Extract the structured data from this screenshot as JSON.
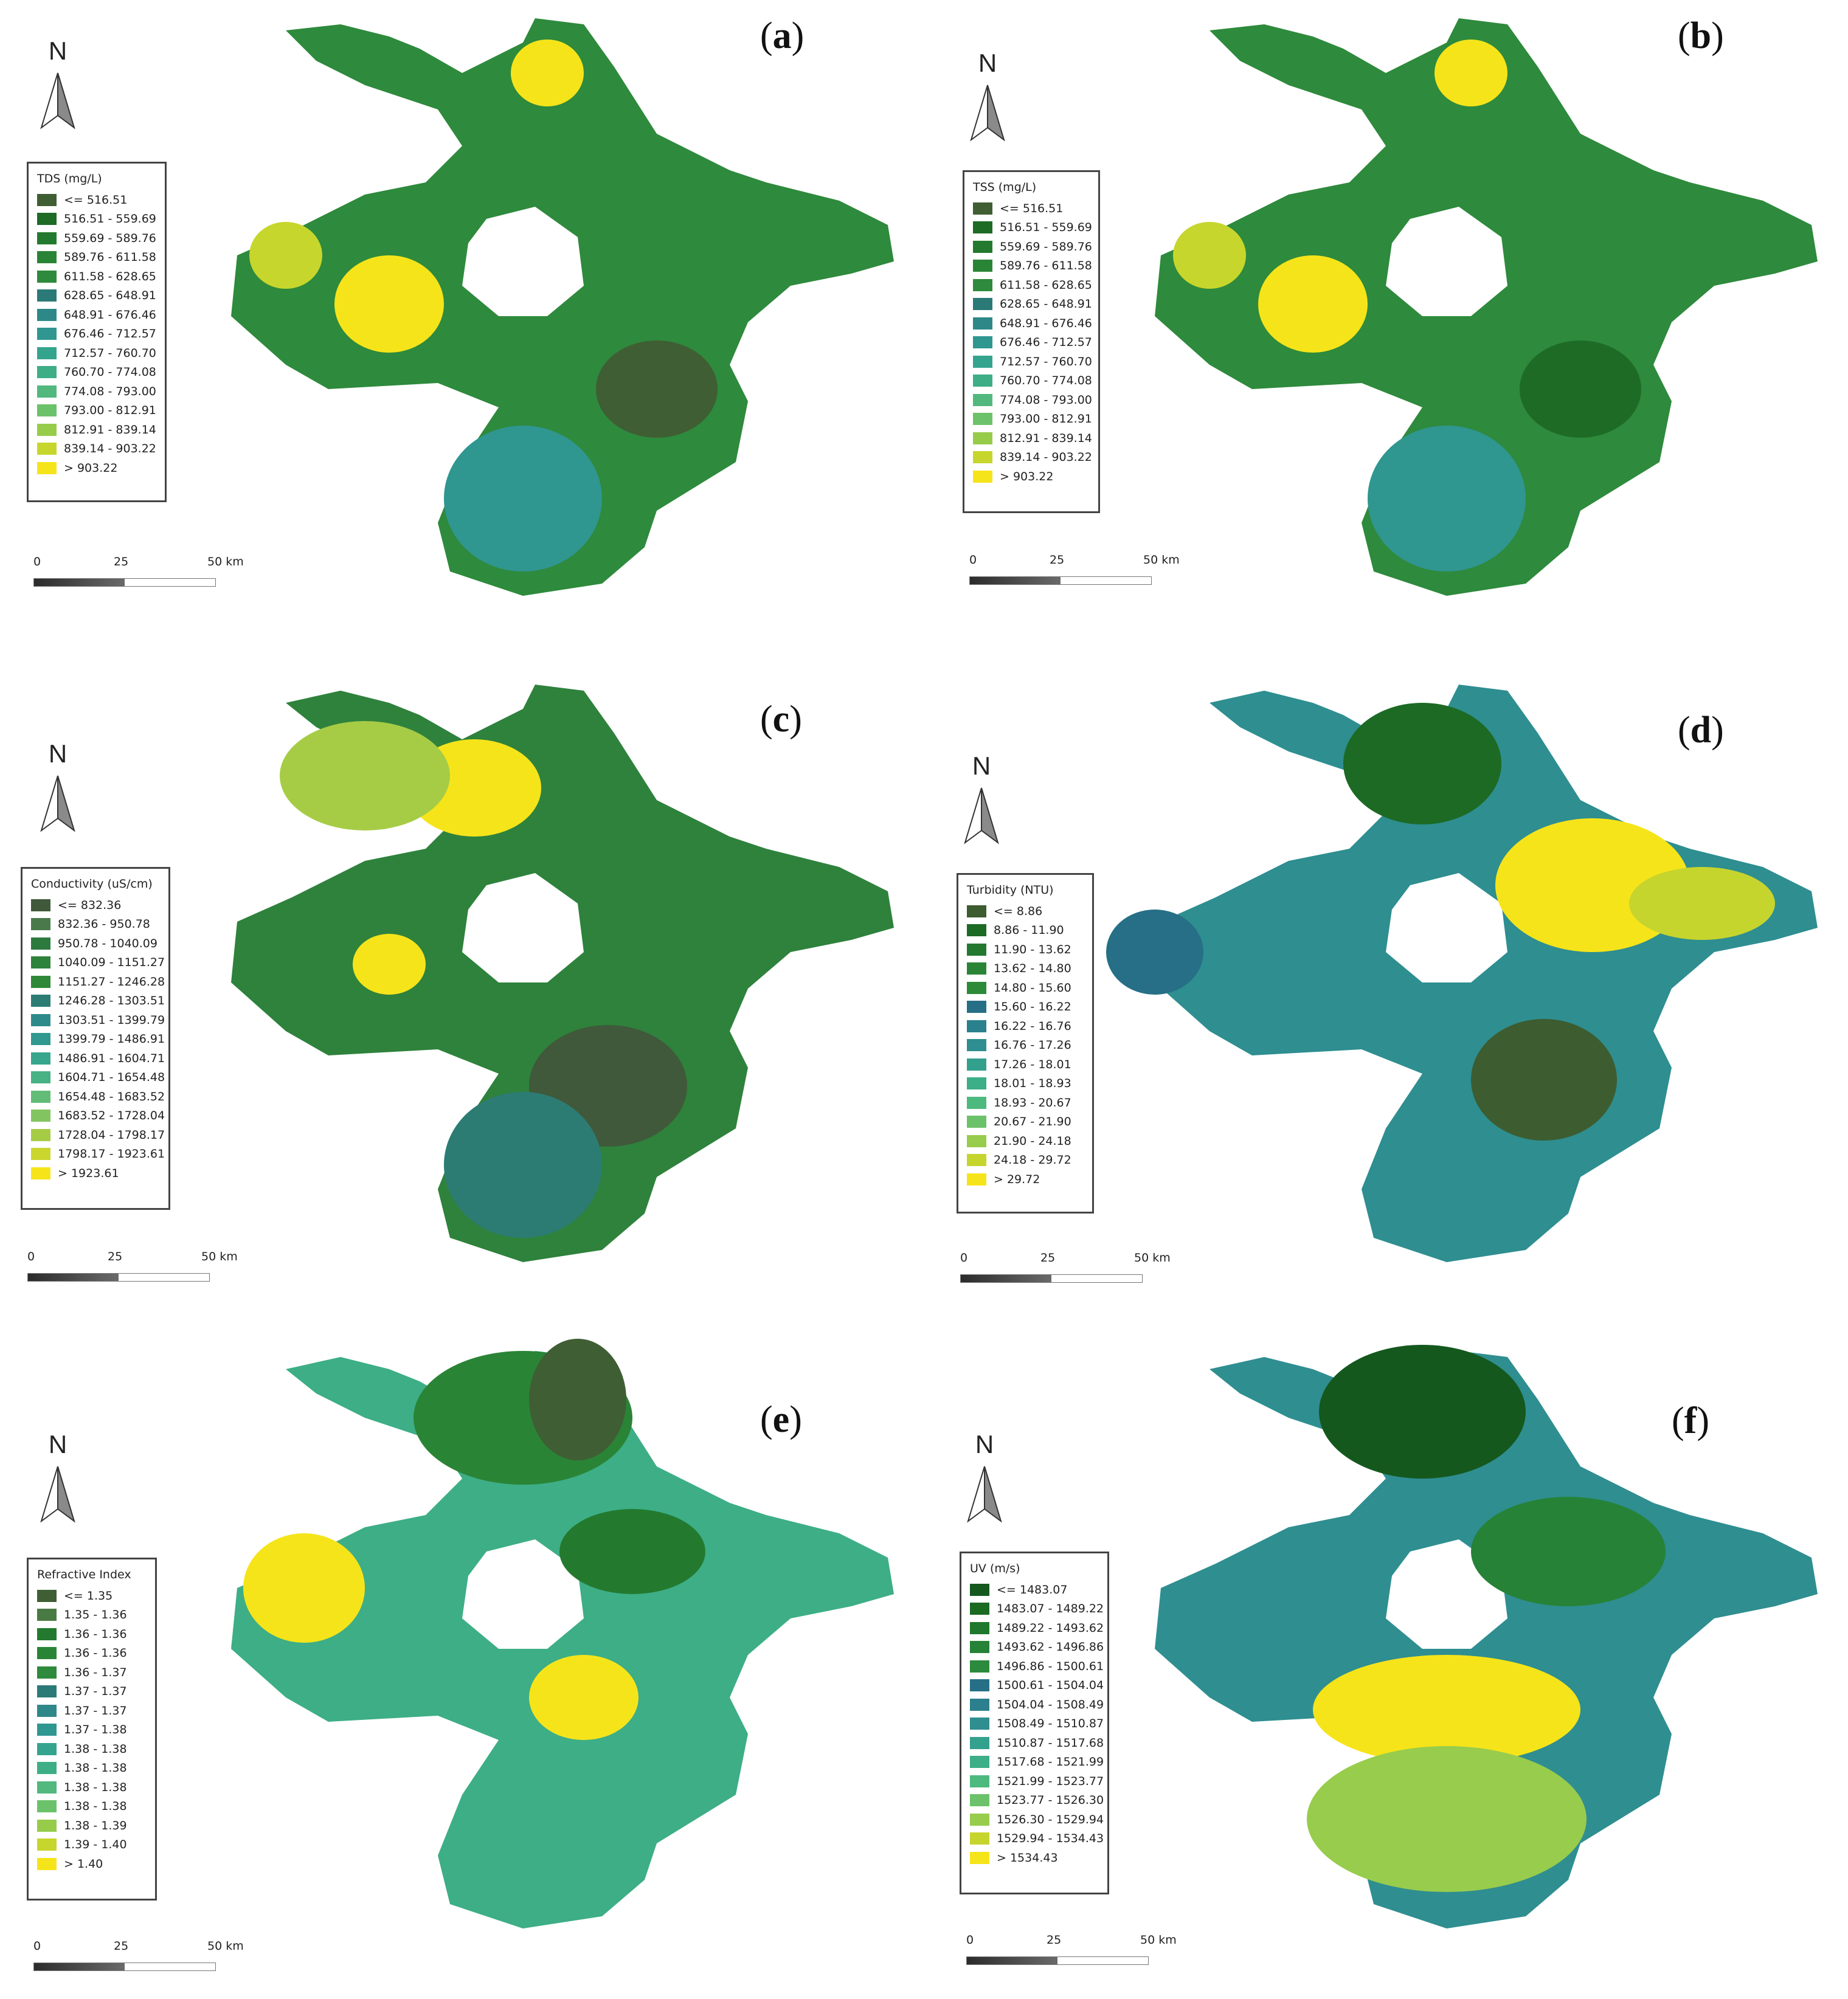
{
  "panels": [
    {
      "label": "a",
      "legend_title": "TDS (mg/L)",
      "classes": [
        "<= 516.51",
        "516.51 - 559.69",
        "559.69 - 589.76",
        "589.76 - 611.58",
        "611.58 - 628.65",
        "628.65 - 648.91",
        "648.91 - 676.46",
        "676.46 - 712.57",
        "712.57 - 760.70",
        "760.70 - 774.08",
        "774.08 - 793.00",
        "793.00 - 812.91",
        "812.91 - 839.14",
        "839.14 - 903.22",
        "> 903.22"
      ],
      "scale": {
        "tick_0": "0",
        "tick_25": "25",
        "tick_50": "50 km"
      },
      "north": "N"
    },
    {
      "label": "b",
      "legend_title": "TSS (mg/L)",
      "classes": [
        "<= 516.51",
        "516.51 - 559.69",
        "559.69 - 589.76",
        "589.76 - 611.58",
        "611.58 - 628.65",
        "628.65 - 648.91",
        "648.91 - 676.46",
        "676.46 - 712.57",
        "712.57 - 760.70",
        "760.70 - 774.08",
        "774.08 - 793.00",
        "793.00 - 812.91",
        "812.91 - 839.14",
        "839.14 - 903.22",
        "> 903.22"
      ],
      "scale": {
        "tick_0": "0",
        "tick_25": "25",
        "tick_50": "50 km"
      },
      "north": "N"
    },
    {
      "label": "c",
      "legend_title": "Conductivity (uS/cm)",
      "classes": [
        "<= 832.36",
        "832.36 - 950.78",
        "950.78 - 1040.09",
        "1040.09 - 1151.27",
        "1151.27 - 1246.28",
        "1246.28 - 1303.51",
        "1303.51 - 1399.79",
        "1399.79 - 1486.91",
        "1486.91 - 1604.71",
        "1604.71 - 1654.48",
        "1654.48 - 1683.52",
        "1683.52 - 1728.04",
        "1728.04 - 1798.17",
        "1798.17 - 1923.61",
        "> 1923.61"
      ],
      "scale": {
        "tick_0": "0",
        "tick_25": "25",
        "tick_50": "50 km"
      },
      "north": "N"
    },
    {
      "label": "d",
      "legend_title": "Turbidity (NTU)",
      "classes": [
        "<= 8.86",
        "8.86 - 11.90",
        "11.90 - 13.62",
        "13.62 - 14.80",
        "14.80 - 15.60",
        "15.60 - 16.22",
        "16.22 - 16.76",
        "16.76 - 17.26",
        "17.26 - 18.01",
        "18.01 - 18.93",
        "18.93 - 20.67",
        "20.67 - 21.90",
        "21.90 - 24.18",
        "24.18 - 29.72",
        "> 29.72"
      ],
      "scale": {
        "tick_0": "0",
        "tick_25": "25",
        "tick_50": "50 km"
      },
      "north": "N"
    },
    {
      "label": "e",
      "legend_title": "Refractive Index",
      "classes": [
        "<= 1.35",
        "1.35 - 1.36",
        "1.36 - 1.36",
        "1.36 - 1.36",
        "1.36 - 1.37",
        "1.37 - 1.37",
        "1.37 - 1.37",
        "1.37 - 1.38",
        "1.38 - 1.38",
        "1.38 - 1.38",
        "1.38 - 1.38",
        "1.38 - 1.38",
        "1.38 - 1.39",
        "1.39 - 1.40",
        "> 1.40"
      ],
      "scale": {
        "tick_0": "0",
        "tick_25": "25",
        "tick_50": "50 km"
      },
      "north": "N"
    },
    {
      "label": "f",
      "legend_title": "UV (m/s)",
      "classes": [
        "<= 1483.07",
        "1483.07 - 1489.22",
        "1489.22 - 1493.62",
        "1493.62 - 1496.86",
        "1496.86 - 1500.61",
        "1500.61 - 1504.04",
        "1504.04 - 1508.49",
        "1508.49 - 1510.87",
        "1510.87 - 1517.68",
        "1517.68 - 1521.99",
        "1521.99 - 1523.77",
        "1523.77 - 1526.30",
        "1526.30 - 1529.94",
        "1529.94 - 1534.43",
        "> 1534.43"
      ],
      "scale": {
        "tick_0": "0",
        "tick_25": "25",
        "tick_50": "50 km"
      },
      "north": "N"
    }
  ],
  "palettes": {
    "tds": [
      "#3f5e34",
      "#1e6b26",
      "#237a2e",
      "#2a8436",
      "#2e8a3c",
      "#2b7a78",
      "#2e8888",
      "#2f9690",
      "#35a48e",
      "#3dae86",
      "#52b87e",
      "#6cc26a",
      "#96cc4a",
      "#c7d62c",
      "#f6e41a"
    ],
    "conductivity": [
      "#40593a",
      "#4a7a4c",
      "#2c7a3e",
      "#2e823c",
      "#2f8838",
      "#2c7c74",
      "#2d8a8a",
      "#30988e",
      "#37a68c",
      "#48b284",
      "#62bc78",
      "#82c460",
      "#a6cc46",
      "#cad62e",
      "#f6e41a"
    ],
    "turbidity": [
      "#3d5c2f",
      "#1c6a24",
      "#237830",
      "#2a8436",
      "#2c8a38",
      "#266f86",
      "#2b808e",
      "#2e8e90",
      "#33a08e",
      "#3cae88",
      "#4eb97e",
      "#6cc26a",
      "#98cc4c",
      "#c6d42e",
      "#f6e41a"
    ],
    "refractive": [
      "#3f5e34",
      "#4a7a44",
      "#237a2e",
      "#2a8436",
      "#2e8a3c",
      "#2b7a78",
      "#2e8888",
      "#2f9690",
      "#35a48e",
      "#3dae86",
      "#52b87e",
      "#6cc26a",
      "#96cc4a",
      "#c7d62c",
      "#f6e41a"
    ],
    "uv": [
      "#15581e",
      "#1b6a22",
      "#1f782c",
      "#268236",
      "#2c8a3c",
      "#276f86",
      "#2c808e",
      "#2f8e90",
      "#34a08e",
      "#3cae88",
      "#4eb97e",
      "#6cc26a",
      "#98cc4c",
      "#c6d42e",
      "#f6e41a"
    ]
  }
}
